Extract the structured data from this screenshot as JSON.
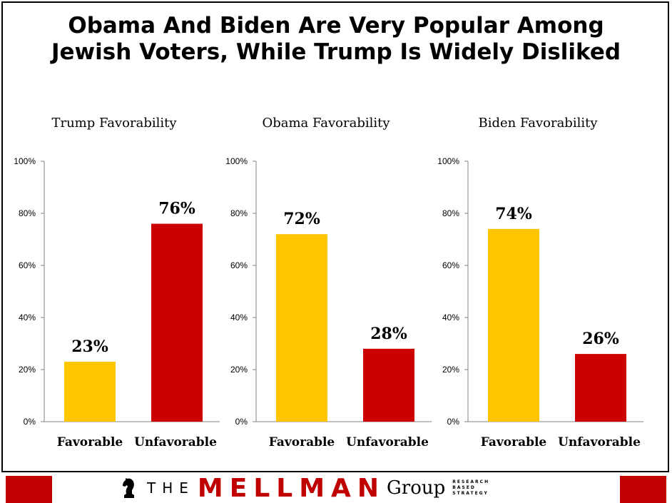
{
  "title_lines": [
    "Obama And Biden Are Very Popular Among",
    "Jewish Voters, While Trump Is Widely Disliked"
  ],
  "colors": {
    "favorable": "#ffc600",
    "unfavorable": "#cc0000",
    "axis": "#808080"
  },
  "chart_data": [
    {
      "type": "bar",
      "title": "Trump Favorability",
      "categories": [
        "Favorable",
        "Unfavorable"
      ],
      "values": [
        23,
        76
      ],
      "value_labels": [
        "23%",
        "76%"
      ],
      "ylim": [
        0,
        100
      ],
      "yticks": [
        "0%",
        "20%",
        "40%",
        "60%",
        "80%",
        "100%"
      ],
      "grid": false
    },
    {
      "type": "bar",
      "title": "Obama Favorability",
      "categories": [
        "Favorable",
        "Unfavorable"
      ],
      "values": [
        72,
        28
      ],
      "value_labels": [
        "72%",
        "28%"
      ],
      "ylim": [
        0,
        100
      ],
      "yticks": [
        "0%",
        "20%",
        "40%",
        "60%",
        "80%",
        "100%"
      ],
      "grid": false
    },
    {
      "type": "bar",
      "title": "Biden Favorability",
      "categories": [
        "Favorable",
        "Unfavorable"
      ],
      "values": [
        74,
        26
      ],
      "value_labels": [
        "74%",
        "26%"
      ],
      "ylim": [
        0,
        100
      ],
      "yticks": [
        "0%",
        "20%",
        "40%",
        "60%",
        "80%",
        "100%"
      ],
      "grid": false
    }
  ],
  "footer": {
    "logo_the": "THE",
    "logo_mellman": "MELLMAN",
    "logo_group": "Group",
    "logo_tagline": [
      "RESEARCH",
      "BASED",
      "STRATEGY"
    ],
    "logo_icon": "knight-chess-icon"
  }
}
